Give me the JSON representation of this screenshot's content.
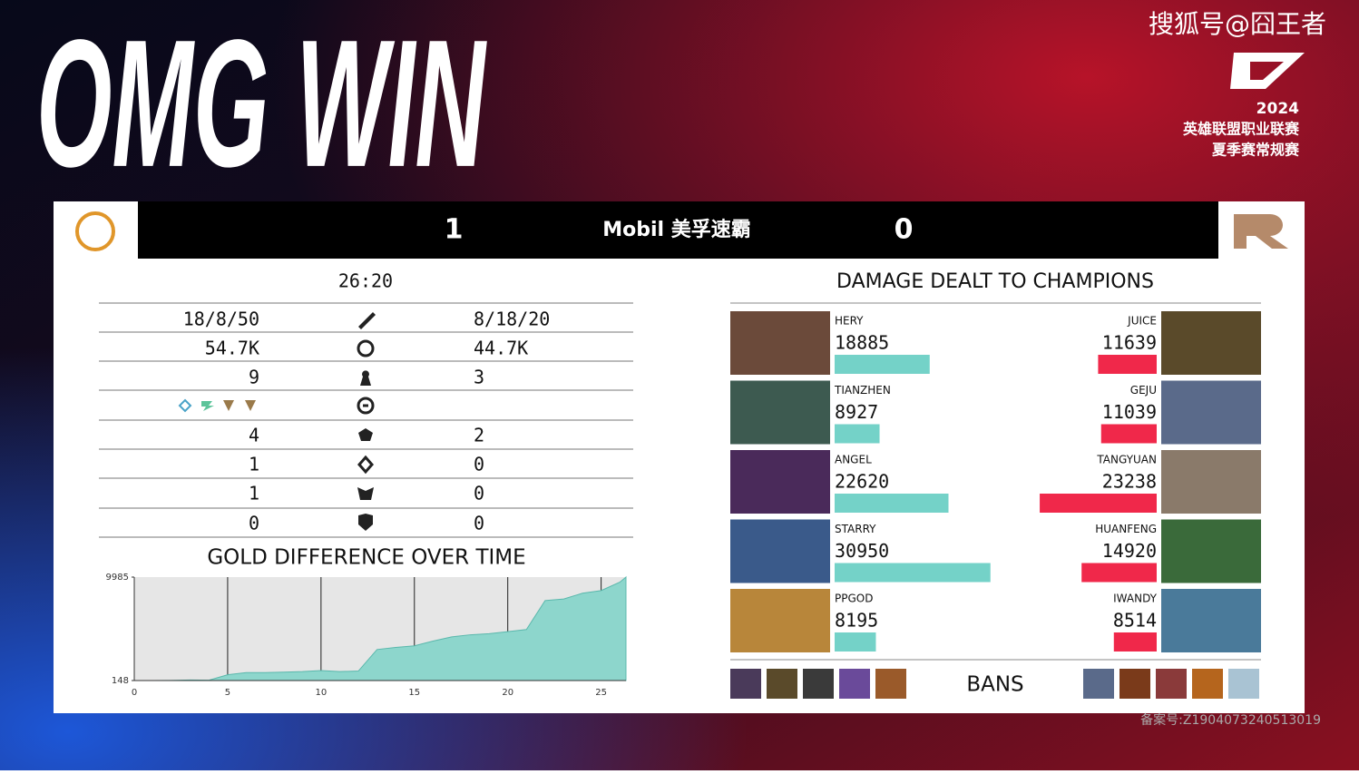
{
  "banner": {
    "title": "OMG WIN",
    "watermark": "搜狐号@囧王者",
    "league_year": "2024",
    "league_name": "英雄联盟职业联赛",
    "league_season": "夏季赛常规赛"
  },
  "scoreboard": {
    "left_score": 1,
    "sponsor": "Mobil 美孚速霸",
    "right_score": 0
  },
  "stats": {
    "time": "26:20",
    "rows": [
      {
        "left": "18/8/50",
        "right": "8/18/20"
      },
      {
        "left": "54.7K",
        "right": "44.7K"
      },
      {
        "left": 9,
        "right": 3
      },
      {
        "left": 4,
        "right": 2
      },
      {
        "left": 1,
        "right": 0
      },
      {
        "left": 1,
        "right": 0
      },
      {
        "left": 0,
        "right": 0
      }
    ]
  },
  "gold_chart": {
    "type": "area",
    "title": "GOLD DIFFERENCE OVER TIME",
    "color": "#8dd6cc",
    "x": [
      0,
      1,
      2,
      3,
      4,
      5,
      6,
      7,
      8,
      9,
      10,
      11,
      12,
      13,
      14,
      15,
      16,
      17,
      18,
      19,
      20,
      21,
      22,
      23,
      24,
      25,
      26,
      26.33
    ],
    "values": [
      148,
      150,
      160,
      200,
      180,
      700,
      900,
      900,
      950,
      1000,
      1100,
      1000,
      1050,
      3100,
      3300,
      3450,
      3900,
      4300,
      4500,
      4600,
      4800,
      5000,
      7750,
      7900,
      8450,
      8700,
      9500,
      9985
    ],
    "xlim": [
      0,
      26.33
    ],
    "xticks": [
      0,
      5,
      10,
      15,
      20,
      25
    ],
    "ylim": [
      148,
      9985
    ],
    "yticks": [
      148,
      9985
    ],
    "grid": true
  },
  "damage": {
    "title": "DAMAGE DEALT TO CHAMPIONS",
    "max": 31000,
    "left": [
      {
        "name": "HERY",
        "value": 18885
      },
      {
        "name": "TIANZHEN",
        "value": 8927
      },
      {
        "name": "ANGEL",
        "value": 22620
      },
      {
        "name": "STARRY",
        "value": 30950
      },
      {
        "name": "PPGOD",
        "value": 8195
      }
    ],
    "right": [
      {
        "name": "JUICE",
        "value": 11639
      },
      {
        "name": "GEJU",
        "value": 11039
      },
      {
        "name": "TANGYUAN",
        "value": 23238
      },
      {
        "name": "HUANFENG",
        "value": 14920
      },
      {
        "name": "IWANDY",
        "value": 8514
      }
    ],
    "left_color": "#74d2c8",
    "right_color": "#f0284a"
  },
  "bans_label": "BANS",
  "footer": "备案号:Z1904073240513019"
}
